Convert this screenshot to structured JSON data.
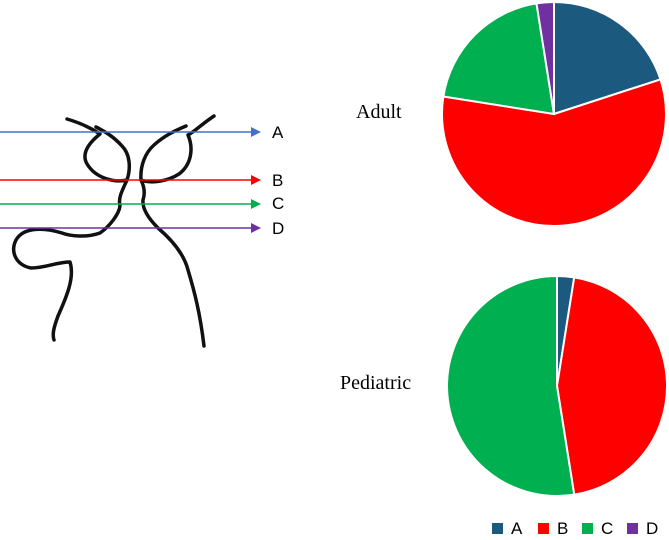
{
  "diagram": {
    "markers": [
      {
        "id": "A",
        "label": "A",
        "color": "#4472C4"
      },
      {
        "id": "B",
        "label": "B",
        "color": "#FF0000"
      },
      {
        "id": "C",
        "label": "C",
        "color": "#00B050"
      },
      {
        "id": "D",
        "label": "D",
        "color": "#7030A0"
      }
    ]
  },
  "chart_data": [
    {
      "type": "pie",
      "title": "Adult",
      "categories": [
        "A",
        "B",
        "C",
        "D"
      ],
      "values": [
        20.0,
        57.5,
        20.0,
        2.5
      ],
      "colors": [
        "#1B5A7E",
        "#FF0000",
        "#00B050",
        "#7030A0"
      ],
      "start": "12 o'clock",
      "direction": "clockwise"
    },
    {
      "type": "pie",
      "title": "Pediatric",
      "categories": [
        "A",
        "B",
        "C",
        "D"
      ],
      "values": [
        2.5,
        45.0,
        52.5,
        0
      ],
      "colors": [
        "#1B5A7E",
        "#FF0000",
        "#00B050",
        "#7030A0"
      ],
      "start": "12 o'clock",
      "direction": "clockwise"
    }
  ],
  "legend": {
    "placement": "bottom-right",
    "items": [
      {
        "label": "A",
        "color": "#1B5A7E"
      },
      {
        "label": "B",
        "color": "#FF0000"
      },
      {
        "label": "C",
        "color": "#00B050"
      },
      {
        "label": "D",
        "color": "#7030A0"
      }
    ]
  }
}
